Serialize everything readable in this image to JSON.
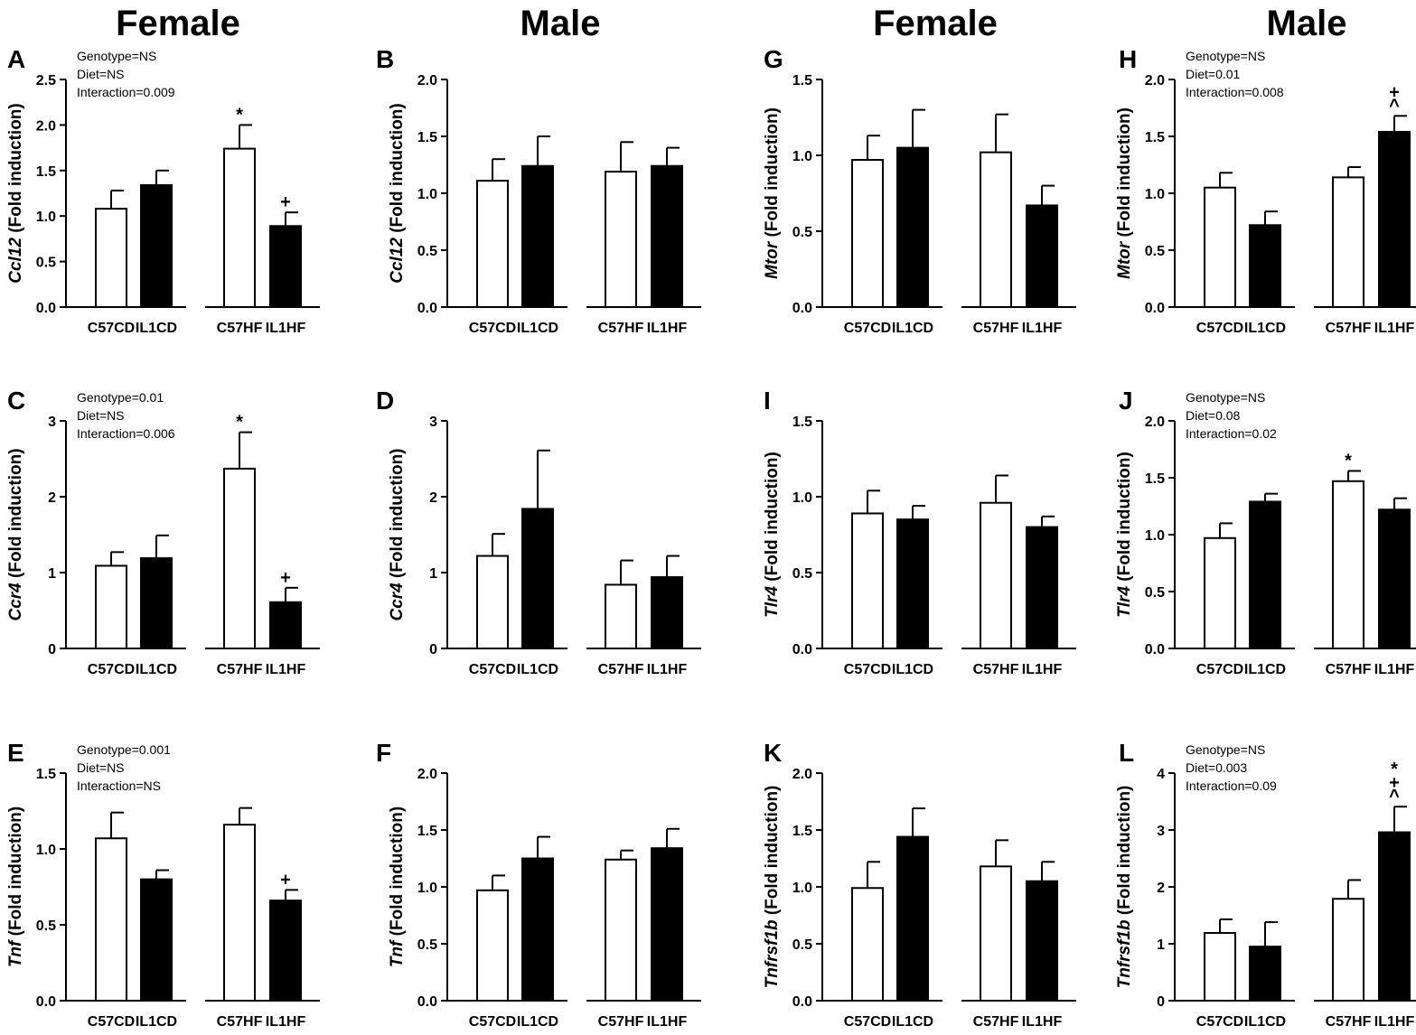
{
  "columns": [
    "Female",
    "Male",
    "Female",
    "Male"
  ],
  "legend": {
    "hollow_bars": [
      "C57CD",
      "C57HF"
    ],
    "filled_bars": [
      "IL1CD",
      "IL1HF"
    ]
  },
  "colors": {
    "bar_fill": "#000000",
    "bar_hollow": "#ffffff",
    "axis": "#000000"
  },
  "chart_data": [
    {
      "panel": "A",
      "type": "bar",
      "gene": "Ccl12",
      "ylabel_suffix": " (Fold induction)",
      "ylim": [
        0,
        2.5
      ],
      "yticks": [
        "0.0",
        "0.5",
        "1.0",
        "1.5",
        "2.0",
        "2.5"
      ],
      "categories": [
        "C57CD",
        "IL1CD",
        "C57HF",
        "IL1HF"
      ],
      "values": [
        1.08,
        1.34,
        1.74,
        0.89
      ],
      "errors": [
        0.2,
        0.16,
        0.26,
        0.15
      ],
      "markers": [
        "",
        "",
        "*",
        "+"
      ],
      "stats": [
        "Genotype=NS",
        "Diet=NS",
        "Interaction=0.009"
      ]
    },
    {
      "panel": "B",
      "type": "bar",
      "gene": "Ccl12",
      "ylabel_suffix": " (Fold induction)",
      "ylim": [
        0,
        2.0
      ],
      "yticks": [
        "0.0",
        "0.5",
        "1.0",
        "1.5",
        "2.0"
      ],
      "categories": [
        "C57CD",
        "IL1CD",
        "C57HF",
        "IL1HF"
      ],
      "values": [
        1.11,
        1.24,
        1.19,
        1.24
      ],
      "errors": [
        0.19,
        0.26,
        0.26,
        0.16
      ],
      "markers": [
        "",
        "",
        "",
        ""
      ],
      "stats": []
    },
    {
      "panel": "G",
      "type": "bar",
      "gene": "Mtor",
      "ylabel_suffix": " (Fold induction)",
      "ylim": [
        0,
        1.5
      ],
      "yticks": [
        "0.0",
        "0.5",
        "1.0",
        "1.5"
      ],
      "categories": [
        "C57CD",
        "IL1CD",
        "C57HF",
        "IL1HF"
      ],
      "values": [
        0.97,
        1.05,
        1.02,
        0.67
      ],
      "errors": [
        0.16,
        0.25,
        0.25,
        0.13
      ],
      "markers": [
        "",
        "",
        "",
        ""
      ],
      "stats": []
    },
    {
      "panel": "H",
      "type": "bar",
      "gene": "Mtor",
      "ylabel_suffix": " (Fold induction)",
      "ylim": [
        0,
        2.0
      ],
      "yticks": [
        "0.0",
        "0.5",
        "1.0",
        "1.5",
        "2.0"
      ],
      "categories": [
        "C57CD",
        "IL1CD",
        "C57HF",
        "IL1HF"
      ],
      "values": [
        1.05,
        0.72,
        1.14,
        1.54
      ],
      "errors": [
        0.13,
        0.12,
        0.09,
        0.14
      ],
      "markers": [
        "",
        "",
        "",
        "+\n^"
      ],
      "stats": [
        "Genotype=NS",
        "Diet=0.01",
        "Interaction=0.008"
      ]
    },
    {
      "panel": "C",
      "type": "bar",
      "gene": "Ccr4",
      "ylabel_suffix": " (Fold induction)",
      "ylim": [
        0,
        3
      ],
      "yticks": [
        "0",
        "1",
        "2",
        "3"
      ],
      "categories": [
        "C57CD",
        "IL1CD",
        "C57HF",
        "IL1HF"
      ],
      "values": [
        1.09,
        1.19,
        2.37,
        0.61
      ],
      "errors": [
        0.18,
        0.3,
        0.48,
        0.19
      ],
      "markers": [
        "",
        "",
        "*",
        "+"
      ],
      "stats": [
        "Genotype=0.01",
        "Diet=NS",
        "Interaction=0.006"
      ]
    },
    {
      "panel": "D",
      "type": "bar",
      "gene": "Ccr4",
      "ylabel_suffix": " (Fold induction)",
      "ylim": [
        0,
        3
      ],
      "yticks": [
        "0",
        "1",
        "2",
        "3"
      ],
      "categories": [
        "C57CD",
        "IL1CD",
        "C57HF",
        "IL1HF"
      ],
      "values": [
        1.22,
        1.84,
        0.84,
        0.94
      ],
      "errors": [
        0.29,
        0.77,
        0.32,
        0.28
      ],
      "markers": [
        "",
        "",
        "",
        ""
      ],
      "stats": []
    },
    {
      "panel": "I",
      "type": "bar",
      "gene": "Tlr4",
      "ylabel_suffix": " (Fold induction)",
      "ylim": [
        0,
        1.5
      ],
      "yticks": [
        "0.0",
        "0.5",
        "1.0",
        "1.5"
      ],
      "categories": [
        "C57CD",
        "IL1CD",
        "C57HF",
        "IL1HF"
      ],
      "values": [
        0.89,
        0.85,
        0.96,
        0.8
      ],
      "errors": [
        0.15,
        0.09,
        0.18,
        0.07
      ],
      "markers": [
        "",
        "",
        "",
        ""
      ],
      "stats": []
    },
    {
      "panel": "J",
      "type": "bar",
      "gene": "Tlr4",
      "ylabel_suffix": " (Fold induction)",
      "ylim": [
        0,
        2.0
      ],
      "yticks": [
        "0.0",
        "0.5",
        "1.0",
        "1.5",
        "2.0"
      ],
      "categories": [
        "C57CD",
        "IL1CD",
        "C57HF",
        "IL1HF"
      ],
      "values": [
        0.97,
        1.29,
        1.47,
        1.22
      ],
      "errors": [
        0.13,
        0.07,
        0.09,
        0.1
      ],
      "markers": [
        "",
        "",
        "*",
        ""
      ],
      "stats": [
        "Genotype=NS",
        "Diet=0.08",
        "Interaction=0.02"
      ]
    },
    {
      "panel": "E",
      "type": "bar",
      "gene": "Tnf",
      "ylabel_suffix": " (Fold induction)",
      "ylim": [
        0,
        1.5
      ],
      "yticks": [
        "0.0",
        "0.5",
        "1.0",
        "1.5"
      ],
      "categories": [
        "C57CD",
        "IL1CD",
        "C57HF",
        "IL1HF"
      ],
      "values": [
        1.07,
        0.8,
        1.16,
        0.66
      ],
      "errors": [
        0.17,
        0.06,
        0.11,
        0.07
      ],
      "markers": [
        "",
        "",
        "",
        "+"
      ],
      "stats": [
        "Genotype=0.001",
        "Diet=NS",
        "Interaction=NS"
      ]
    },
    {
      "panel": "F",
      "type": "bar",
      "gene": "Tnf",
      "ylabel_suffix": " (Fold induction)",
      "ylim": [
        0,
        2.0
      ],
      "yticks": [
        "0.0",
        "0.5",
        "1.0",
        "1.5",
        "2.0"
      ],
      "categories": [
        "C57CD",
        "IL1CD",
        "C57HF",
        "IL1HF"
      ],
      "values": [
        0.97,
        1.25,
        1.24,
        1.34
      ],
      "errors": [
        0.13,
        0.19,
        0.08,
        0.17
      ],
      "markers": [
        "",
        "",
        "",
        ""
      ],
      "stats": []
    },
    {
      "panel": "K",
      "type": "bar",
      "gene": "Tnfrsf1b",
      "ylabel_suffix": " (Fold induction)",
      "ylim": [
        0,
        2.0
      ],
      "yticks": [
        "0.0",
        "0.5",
        "1.0",
        "1.5",
        "2.0"
      ],
      "categories": [
        "C57CD",
        "IL1CD",
        "C57HF",
        "IL1HF"
      ],
      "values": [
        0.99,
        1.44,
        1.18,
        1.05
      ],
      "errors": [
        0.23,
        0.25,
        0.23,
        0.17
      ],
      "markers": [
        "",
        "",
        "",
        ""
      ],
      "stats": []
    },
    {
      "panel": "L",
      "type": "bar",
      "gene": "Tnfrsf1b",
      "ylabel_suffix": " (Fold induction)",
      "ylim": [
        0,
        4
      ],
      "yticks": [
        "0",
        "1",
        "2",
        "3",
        "4"
      ],
      "categories": [
        "C57CD",
        "IL1CD",
        "C57HF",
        "IL1HF"
      ],
      "values": [
        1.19,
        0.95,
        1.79,
        2.96
      ],
      "errors": [
        0.24,
        0.43,
        0.33,
        0.45
      ],
      "markers": [
        "",
        "",
        "",
        "*\n+\n^"
      ],
      "stats": [
        "Genotype=NS",
        "Diet=0.003",
        "Interaction=0.09"
      ]
    }
  ]
}
